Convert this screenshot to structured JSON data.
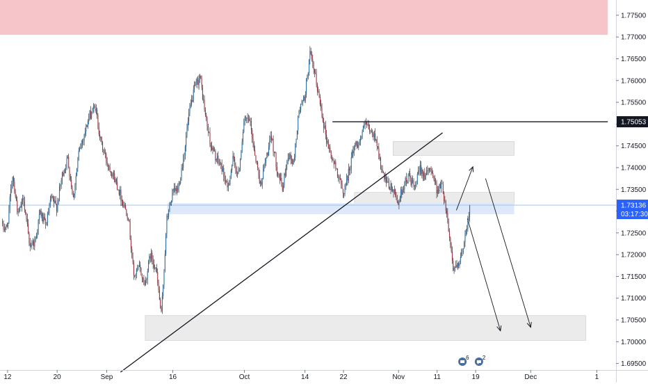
{
  "chart_data": {
    "type": "candlestick",
    "x_ticks": [
      {
        "label": "12",
        "i": 1
      },
      {
        "label": "20",
        "i": 10
      },
      {
        "label": "Sep",
        "i": 19
      },
      {
        "label": "16",
        "i": 31
      },
      {
        "label": "Oct",
        "i": 44
      },
      {
        "label": "14",
        "i": 55
      },
      {
        "label": "22",
        "i": 62
      },
      {
        "label": "Nov",
        "i": 72
      },
      {
        "label": "11",
        "i": 79
      },
      {
        "label": "19",
        "i": 86
      },
      {
        "label": "Dec",
        "i": 96
      },
      {
        "label": "1",
        "i": 108
      }
    ],
    "y_ticks": [
      "1.77500",
      "1.77000",
      "1.76500",
      "1.76000",
      "1.75500",
      "1.75000",
      "1.74500",
      "1.74000",
      "1.73500",
      "1.73000",
      "1.72500",
      "1.72000",
      "1.71500",
      "1.71000",
      "1.70500",
      "1.70000",
      "1.69500"
    ],
    "y_tick_values": [
      1.775,
      1.77,
      1.765,
      1.76,
      1.755,
      1.75,
      1.745,
      1.74,
      1.735,
      1.73,
      1.725,
      1.72,
      1.715,
      1.71,
      1.705,
      1.7,
      1.695
    ],
    "ylim": [
      1.6935,
      1.7785
    ],
    "xlim": [
      -0.5,
      110
    ],
    "price_labels": {
      "level_value": 1.75053,
      "level_label": "1.75053",
      "current_value": 1.73136,
      "current_label": "1.73136",
      "countdown": "03:17:30"
    },
    "close_path": [
      [
        0,
        1.7262
      ],
      [
        1,
        1.7262
      ],
      [
        2,
        1.7385
      ],
      [
        3,
        1.729
      ],
      [
        4,
        1.733
      ],
      [
        5,
        1.7225
      ],
      [
        6,
        1.7228
      ],
      [
        7,
        1.7298
      ],
      [
        8,
        1.7265
      ],
      [
        9,
        1.7328
      ],
      [
        10,
        1.731
      ],
      [
        11,
        1.7382
      ],
      [
        12,
        1.742
      ],
      [
        13,
        1.733
      ],
      [
        14,
        1.7432
      ],
      [
        15,
        1.7478
      ],
      [
        16,
        1.752
      ],
      [
        17,
        1.754
      ],
      [
        18,
        1.746
      ],
      [
        19,
        1.7418
      ],
      [
        20,
        1.739
      ],
      [
        21,
        1.736
      ],
      [
        22,
        1.732
      ],
      [
        23,
        1.729
      ],
      [
        24,
        1.715
      ],
      [
        25,
        1.717
      ],
      [
        26,
        1.713
      ],
      [
        27,
        1.72
      ],
      [
        28,
        1.717
      ],
      [
        29,
        1.706
      ],
      [
        30,
        1.728
      ],
      [
        31,
        1.734
      ],
      [
        32,
        1.735
      ],
      [
        33,
        1.742
      ],
      [
        34,
        1.752
      ],
      [
        35,
        1.758
      ],
      [
        36,
        1.761
      ],
      [
        37,
        1.752
      ],
      [
        38,
        1.745
      ],
      [
        39,
        1.742
      ],
      [
        40,
        1.74
      ],
      [
        41,
        1.735
      ],
      [
        42,
        1.7418
      ],
      [
        43,
        1.7382
      ],
      [
        44,
        1.7505
      ],
      [
        45,
        1.751
      ],
      [
        46,
        1.7432
      ],
      [
        47,
        1.736
      ],
      [
        48,
        1.742
      ],
      [
        49,
        1.747
      ],
      [
        50,
        1.74
      ],
      [
        51,
        1.735
      ],
      [
        52,
        1.743
      ],
      [
        53,
        1.741
      ],
      [
        54,
        1.753
      ],
      [
        55,
        1.756
      ],
      [
        56,
        1.766
      ],
      [
        57,
        1.7605
      ],
      [
        58,
        1.7538
      ],
      [
        59,
        1.7465
      ],
      [
        60,
        1.742
      ],
      [
        61,
        1.739
      ],
      [
        62,
        1.734
      ],
      [
        63,
        1.7388
      ],
      [
        64,
        1.745
      ],
      [
        65,
        1.746
      ],
      [
        66,
        1.75
      ],
      [
        67,
        1.748
      ],
      [
        68,
        1.7468
      ],
      [
        69,
        1.739
      ],
      [
        70,
        1.736
      ],
      [
        71,
        1.735
      ],
      [
        72,
        1.732
      ],
      [
        73,
        1.736
      ],
      [
        74,
        1.738
      ],
      [
        75,
        1.735
      ],
      [
        76,
        1.74
      ],
      [
        77,
        1.738
      ],
      [
        78,
        1.74
      ],
      [
        79,
        1.735
      ],
      [
        80,
        1.736
      ],
      [
        81,
        1.728
      ],
      [
        82,
        1.717
      ],
      [
        83,
        1.717
      ],
      [
        84,
        1.723
      ],
      [
        85,
        1.731
      ]
    ],
    "zones": [
      {
        "name": "supply-zone-red",
        "color": "#f5c5c9",
        "x": [
          -0.5,
          110
        ],
        "y": [
          1.7705,
          1.7785
        ]
      },
      {
        "name": "resistance-zone-top",
        "color": "#ebebeb",
        "x": [
          71,
          93
        ],
        "y": [
          1.7428,
          1.746
        ]
      },
      {
        "name": "resistance-zone-mid",
        "color": "#ebebeb",
        "x": [
          64,
          93
        ],
        "y": [
          1.7317,
          1.7343
        ]
      },
      {
        "name": "support-zone-blue",
        "color": "#dde8fb",
        "x": [
          30,
          93
        ],
        "y": [
          1.7293,
          1.7318
        ]
      },
      {
        "name": "demand-zone-bottom",
        "color": "#ebebeb",
        "x": [
          26,
          106
        ],
        "y": [
          1.7003,
          1.706
        ]
      }
    ],
    "lines": [
      {
        "name": "rising-trendline",
        "from": [
          21.5,
          1.693
        ],
        "to": [
          80,
          1.748
        ]
      },
      {
        "name": "horizontal-level-line",
        "from": [
          60,
          1.75053
        ],
        "to": [
          110,
          1.75053
        ]
      }
    ],
    "arrows": [
      {
        "name": "projection-arrow-up",
        "from": [
          82.5,
          1.7302
        ],
        "to": [
          85.5,
          1.7402
        ]
      },
      {
        "name": "projection-arrow-down-left",
        "from": [
          84.5,
          1.7283
        ],
        "to": [
          90.5,
          1.7025
        ]
      },
      {
        "name": "projection-arrow-down-right",
        "from": [
          87.8,
          1.7375
        ],
        "to": [
          96,
          1.7033
        ]
      }
    ]
  },
  "colors": {
    "bull": "#2b6fa3",
    "bear": "#9c3541",
    "wick": "#131722",
    "level_label_bg": "#131722",
    "current_label_bg": "#2962ff",
    "current_price_line": "#9fc4ee",
    "axis_line": "#d1d4dc"
  },
  "icons": [
    "clipboard-notes-icon",
    "chat-notes-icon"
  ],
  "icon_counts": [
    "6",
    "2"
  ]
}
